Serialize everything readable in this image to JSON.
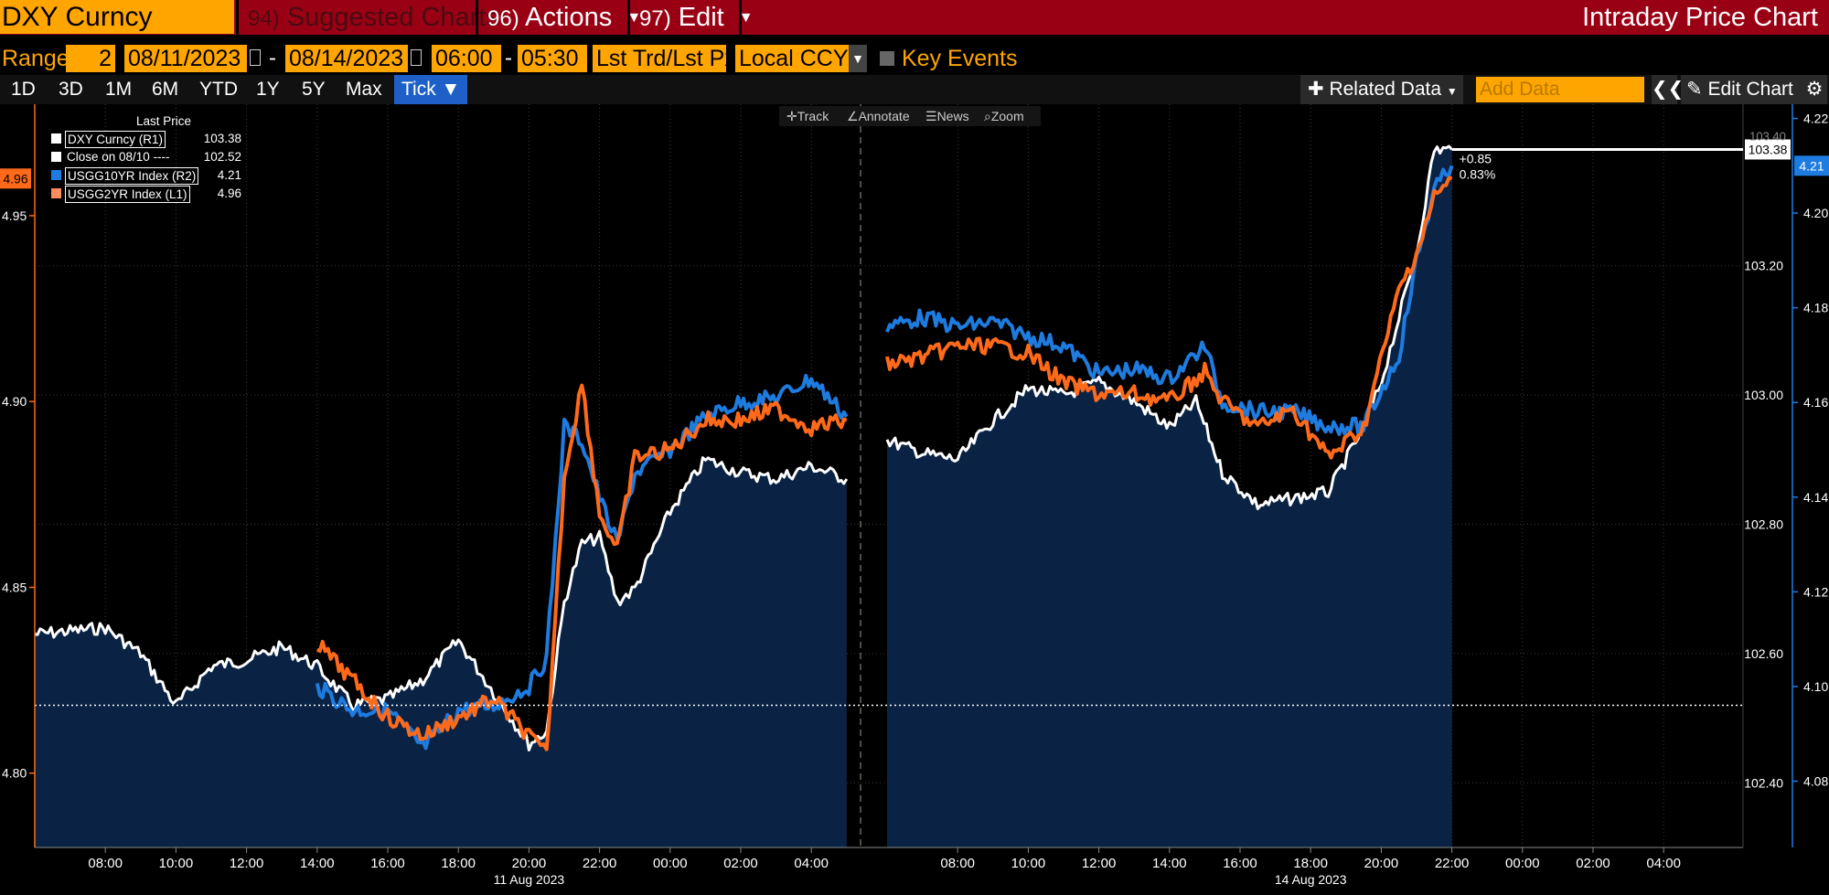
{
  "topbar": {
    "ticker": "DXY Curncy",
    "suggested_num": "94)",
    "suggested_label": "Suggested Charts",
    "actions_num": "96)",
    "actions_label": "Actions",
    "edit_num": "97)",
    "edit_label": "Edit",
    "title": "Intraday Price Chart"
  },
  "range_bar": {
    "range_label": "Range",
    "range_value": "2",
    "start_date": "08/11/2023",
    "end_date": "08/14/2023",
    "start_time": "06:00",
    "end_time": "05:30",
    "price_mode": "Lst Trd/Lst Px",
    "currency": "Local CCY",
    "key_events_label": "Key Events"
  },
  "periods": [
    "1D",
    "3D",
    "1M",
    "6M",
    "YTD",
    "1Y",
    "5Y",
    "Max",
    "Tick ▼"
  ],
  "tools": {
    "related_data": "Related Data",
    "add_data_placeholder": "Add Data",
    "edit_chart": "Edit Chart",
    "track": "Track",
    "annotate": "Annotate",
    "news": "News",
    "zoom": "Zoom"
  },
  "legend": {
    "header": "Last Price",
    "items": [
      {
        "name": "DXY Curncy  (R1)",
        "value": "103.38",
        "color": "#ffffff"
      },
      {
        "name": "Close on 08/10 ----",
        "value": "102.52",
        "color": "#ffffff"
      },
      {
        "name": "USGG10YR Index  (R2)",
        "value": "4.21",
        "color": "#1e7be0"
      },
      {
        "name": "USGG2YR Index  (L1)",
        "value": "4.96",
        "color": "#ff8c5a"
      }
    ]
  },
  "annotations": {
    "change_abs": "+0.85",
    "change_pct": "0.83%",
    "left_tag": "4.96",
    "r1_tag": "103.38",
    "r2_tag": "4.21",
    "r1_partial_tag": "103.40"
  },
  "colors": {
    "dxy": "#ffffff",
    "us10y": "#1e7be0",
    "us2y": "#ff6a1a",
    "area_fill": "#0a2345",
    "accent": "#ffa500",
    "topbar": "#9a0014"
  },
  "chart_data": {
    "type": "line",
    "x_tick_labels": [
      "08:00",
      "10:00",
      "12:00",
      "14:00",
      "16:00",
      "18:00",
      "20:00",
      "22:00",
      "00:00",
      "02:00",
      "04:00",
      "08:00",
      "10:00",
      "12:00",
      "14:00",
      "16:00",
      "18:00",
      "20:00",
      "22:00",
      "00:00",
      "02:00",
      "04:00"
    ],
    "date_labels": [
      "11 Aug 2023",
      "14 Aug 2023"
    ],
    "axes": {
      "left_L1": {
        "ticks": [
          "4.80",
          "4.85",
          "4.90",
          "4.95"
        ],
        "range": [
          4.78,
          4.98
        ]
      },
      "right_R1": {
        "ticks": [
          "102.40",
          "102.60",
          "102.80",
          "103.00",
          "103.20"
        ],
        "range": [
          102.3,
          103.45
        ]
      },
      "right_R2": {
        "ticks": [
          "4.08",
          "4.10",
          "4.12",
          "4.14",
          "4.16",
          "4.18",
          "4.20",
          "4.22"
        ],
        "range": [
          4.066,
          4.223
        ]
      }
    },
    "reference_line": {
      "name": "Close on 08/10",
      "axis": "R1",
      "value": 102.52
    },
    "series": [
      {
        "name": "DXY Curncy (R1)",
        "axis": "R1",
        "style": "area",
        "segments": [
          [
            [
              "08/11 06:00",
              102.63
            ],
            [
              "08/11 08:00",
              102.64
            ],
            [
              "08/11 09:00",
              102.6
            ],
            [
              "08/11 10:00",
              102.52
            ],
            [
              "08/11 11:00",
              102.58
            ],
            [
              "08/11 12:00",
              102.59
            ],
            [
              "08/11 13:00",
              102.61
            ],
            [
              "08/11 14:00",
              102.58
            ],
            [
              "08/11 15:00",
              102.52
            ],
            [
              "08/11 16:00",
              102.53
            ],
            [
              "08/11 17:00",
              102.56
            ],
            [
              "08/11 18:00",
              102.62
            ],
            [
              "08/11 19:00",
              102.54
            ],
            [
              "08/11 20:00",
              102.46
            ],
            [
              "08/11 20:30",
              102.48
            ],
            [
              "08/11 21:00",
              102.68
            ],
            [
              "08/11 21:30",
              102.77
            ],
            [
              "08/11 22:00",
              102.78
            ],
            [
              "08/11 22:30",
              102.68
            ],
            [
              "08/11 23:00",
              102.7
            ],
            [
              "08/12 00:00",
              102.82
            ],
            [
              "08/12 01:00",
              102.9
            ],
            [
              "08/12 02:00",
              102.88
            ],
            [
              "08/12 03:00",
              102.87
            ],
            [
              "08/12 04:00",
              102.89
            ],
            [
              "08/12 05:00",
              102.87
            ]
          ],
          [
            [
              "08/14 06:00",
              102.93
            ],
            [
              "08/14 07:00",
              102.91
            ],
            [
              "08/14 08:00",
              102.9
            ],
            [
              "08/14 09:00",
              102.96
            ],
            [
              "08/14 10:00",
              103.01
            ],
            [
              "08/14 11:00",
              103.0
            ],
            [
              "08/14 12:00",
              103.02
            ],
            [
              "08/14 13:00",
              102.99
            ],
            [
              "08/14 14:00",
              102.95
            ],
            [
              "08/14 14:45",
              102.99
            ],
            [
              "08/14 15:30",
              102.88
            ],
            [
              "08/14 16:30",
              102.83
            ],
            [
              "08/14 17:30",
              102.84
            ],
            [
              "08/14 18:30",
              102.85
            ],
            [
              "08/14 19:30",
              102.95
            ],
            [
              "08/14 20:00",
              103.02
            ],
            [
              "08/14 20:30",
              103.12
            ],
            [
              "08/14 21:00",
              103.22
            ],
            [
              "08/14 21:30",
              103.38
            ],
            [
              "08/14 22:00",
              103.38
            ]
          ]
        ]
      },
      {
        "name": "USGG10YR Index (R2)",
        "axis": "R2",
        "segments": [
          [
            [
              "08/11 14:00",
              4.1
            ],
            [
              "08/11 15:00",
              4.095
            ],
            [
              "08/11 16:00",
              4.095
            ],
            [
              "08/11 17:00",
              4.087
            ],
            [
              "08/11 18:00",
              4.095
            ],
            [
              "08/11 19:00",
              4.096
            ],
            [
              "08/11 20:00",
              4.1
            ],
            [
              "08/11 20:30",
              4.106
            ],
            [
              "08/11 21:00",
              4.155
            ],
            [
              "08/11 21:30",
              4.152
            ],
            [
              "08/11 22:00",
              4.14
            ],
            [
              "08/11 22:30",
              4.13
            ],
            [
              "08/11 23:00",
              4.145
            ],
            [
              "08/12 00:00",
              4.15
            ],
            [
              "08/12 01:00",
              4.157
            ],
            [
              "08/12 02:00",
              4.16
            ],
            [
              "08/12 03:00",
              4.161
            ],
            [
              "08/12 04:00",
              4.165
            ],
            [
              "08/12 05:00",
              4.157
            ]
          ],
          [
            [
              "08/14 06:00",
              4.176
            ],
            [
              "08/14 07:00",
              4.178
            ],
            [
              "08/14 08:00",
              4.176
            ],
            [
              "08/14 09:00",
              4.177
            ],
            [
              "08/14 10:00",
              4.174
            ],
            [
              "08/14 11:00",
              4.172
            ],
            [
              "08/14 12:00",
              4.166
            ],
            [
              "08/14 13:00",
              4.167
            ],
            [
              "08/14 14:00",
              4.165
            ],
            [
              "08/14 15:00",
              4.172
            ],
            [
              "08/14 15:30",
              4.16
            ],
            [
              "08/14 16:30",
              4.158
            ],
            [
              "08/14 17:30",
              4.158
            ],
            [
              "08/14 18:30",
              4.155
            ],
            [
              "08/14 19:30",
              4.155
            ],
            [
              "08/14 20:30",
              4.17
            ],
            [
              "08/14 21:00",
              4.19
            ],
            [
              "08/14 21:30",
              4.205
            ],
            [
              "08/14 22:00",
              4.21
            ]
          ]
        ]
      },
      {
        "name": "USGG2YR Index (L1)",
        "axis": "L1",
        "segments": [
          [
            [
              "08/11 14:00",
              4.835
            ],
            [
              "08/11 15:00",
              4.825
            ],
            [
              "08/11 16:00",
              4.815
            ],
            [
              "08/11 17:00",
              4.81
            ],
            [
              "08/11 18:00",
              4.815
            ],
            [
              "08/11 19:00",
              4.82
            ],
            [
              "08/11 20:00",
              4.81
            ],
            [
              "08/11 20:30",
              4.805
            ],
            [
              "08/11 21:00",
              4.88
            ],
            [
              "08/11 21:30",
              4.905
            ],
            [
              "08/11 22:00",
              4.87
            ],
            [
              "08/11 22:30",
              4.86
            ],
            [
              "08/11 23:00",
              4.885
            ],
            [
              "08/12 00:00",
              4.887
            ],
            [
              "08/12 01:00",
              4.895
            ],
            [
              "08/12 02:00",
              4.895
            ],
            [
              "08/12 03:00",
              4.898
            ],
            [
              "08/12 04:00",
              4.893
            ],
            [
              "08/12 05:00",
              4.895
            ]
          ],
          [
            [
              "08/14 06:00",
              4.91
            ],
            [
              "08/14 07:00",
              4.912
            ],
            [
              "08/14 08:00",
              4.915
            ],
            [
              "08/14 09:00",
              4.915
            ],
            [
              "08/14 10:00",
              4.913
            ],
            [
              "08/14 11:00",
              4.905
            ],
            [
              "08/14 12:00",
              4.902
            ],
            [
              "08/14 13:00",
              4.902
            ],
            [
              "08/14 14:00",
              4.9
            ],
            [
              "08/14 15:00",
              4.908
            ],
            [
              "08/14 15:30",
              4.9
            ],
            [
              "08/14 16:30",
              4.893
            ],
            [
              "08/14 17:30",
              4.898
            ],
            [
              "08/14 18:30",
              4.885
            ],
            [
              "08/14 19:30",
              4.893
            ],
            [
              "08/14 20:30",
              4.93
            ],
            [
              "08/14 21:00",
              4.94
            ],
            [
              "08/14 21:30",
              4.955
            ],
            [
              "08/14 22:00",
              4.96
            ]
          ]
        ]
      }
    ]
  }
}
